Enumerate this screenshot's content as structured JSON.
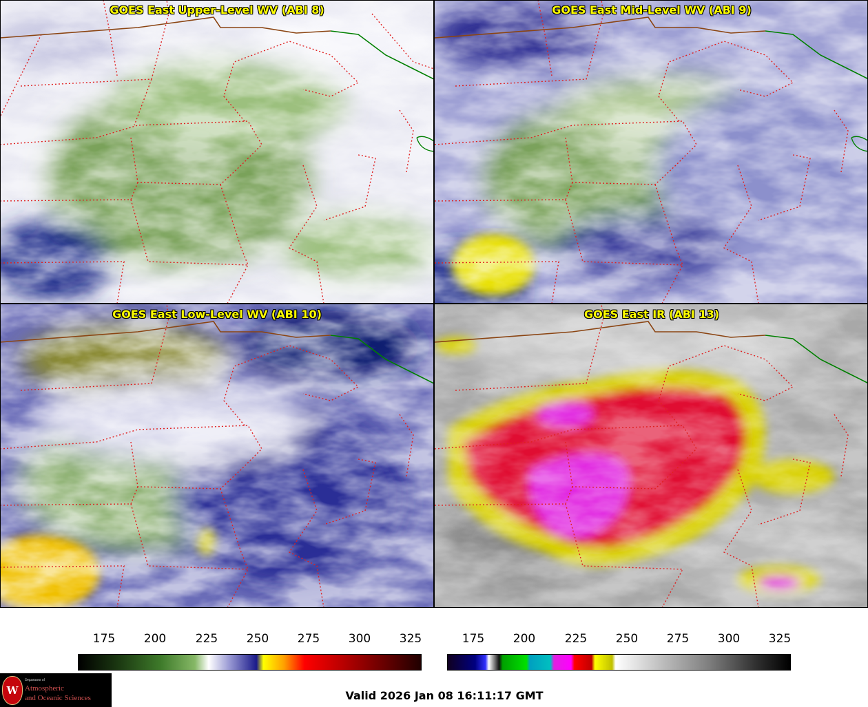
{
  "panels": [
    {
      "title": "GOES East Upper-Level WV (ABI 8)"
    },
    {
      "title": "GOES East Mid-Level WV (ABI 9)"
    },
    {
      "title": "GOES East Low-Level WV (ABI 10)"
    },
    {
      "title": "GOES East IR (ABI 13)"
    }
  ],
  "colorbars": {
    "wv": {
      "ticks": [
        "175",
        "200",
        "225",
        "250",
        "275",
        "300",
        "325"
      ]
    },
    "ir": {
      "ticks": [
        "175",
        "200",
        "225",
        "250",
        "275",
        "300",
        "325"
      ]
    }
  },
  "logo": {
    "seal_letter": "W",
    "dept": "Department of",
    "line1": "Atmospheric",
    "line2": "and Oceanic Sciences"
  },
  "valid_time": "Valid 2026 Jan 08 16:11:17 GMT",
  "colors": {
    "title_text": "#ffff00",
    "state_borders": "#e02020",
    "country_border": "#8b4513",
    "lakes_border": "#008000"
  }
}
